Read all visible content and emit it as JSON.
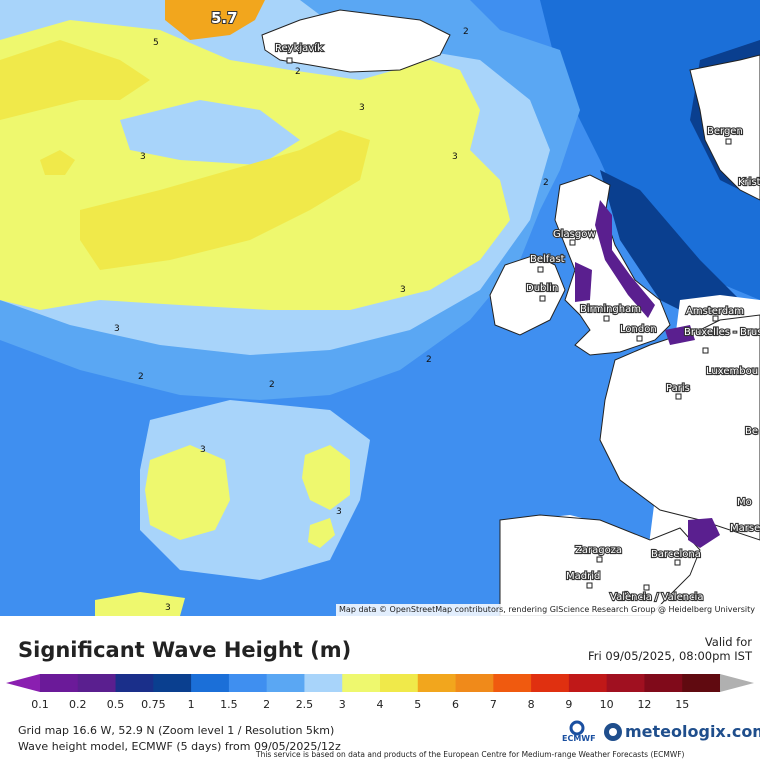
{
  "map": {
    "max_label": "5.7",
    "contour_labels": [
      "5",
      "2",
      "2",
      "3",
      "3",
      "3",
      "3",
      "3",
      "2",
      "2",
      "2",
      "2",
      "3",
      "3",
      "3"
    ],
    "cities": [
      {
        "name": "Reykjavík"
      },
      {
        "name": "Bergen"
      },
      {
        "name": "Krist"
      },
      {
        "name": "Glasgow"
      },
      {
        "name": "Belfast"
      },
      {
        "name": "Dublin"
      },
      {
        "name": "Birmingham"
      },
      {
        "name": "London"
      },
      {
        "name": "Amsterdam"
      },
      {
        "name": "Bruxelles - Brussel"
      },
      {
        "name": "Luxembou"
      },
      {
        "name": "Paris"
      },
      {
        "name": "Zaragoza"
      },
      {
        "name": "Barcelona"
      },
      {
        "name": "Madrid"
      },
      {
        "name": "València / Valencia"
      },
      {
        "name": "Marse"
      },
      {
        "name": "Mo"
      },
      {
        "name": "Be"
      }
    ],
    "attribution": "Map data © OpenStreetMap contributors, rendering GIScience Research Group @ Heidelberg University",
    "colors": {
      "water_deep": "#1e64c8",
      "band_1": "#1b6fd8",
      "band_1_5": "#3f8ff0",
      "band_2": "#5aa7f3",
      "band_2_5": "#a8d4fa",
      "band_3": "#eef86e",
      "band_4": "#f0e94a",
      "band_5": "#f2a61d",
      "land": "#ffffff",
      "band_0_75": "#0a3f8f",
      "band_0_5": "#5a1f8f"
    }
  },
  "legend": {
    "title": "Significant Wave Height (m)",
    "valid_label": "Valid for",
    "valid_time": "Fri 09/05/2025, 08:00pm IST",
    "ticks": [
      "0.1",
      "0.2",
      "0.5",
      "0.75",
      "1",
      "1.5",
      "2",
      "2.5",
      "3",
      "4",
      "5",
      "6",
      "7",
      "8",
      "9",
      "10",
      "12",
      "15"
    ],
    "colors": [
      "#6b1a99",
      "#5a1f8f",
      "#1a2f8a",
      "#0a3f8f",
      "#1b6fd8",
      "#3f8ff0",
      "#5aa7f3",
      "#a8d4fa",
      "#eef86e",
      "#f0e94a",
      "#f2a61d",
      "#f08a1a",
      "#f05a0f",
      "#e03010",
      "#c01818",
      "#a01020",
      "#800a1a",
      "#600a10"
    ],
    "grid_info": "Grid map 16.6 W, 52.9 N (Zoom level 1 / Resolution 5km)",
    "model_info": "Wave height model, ECMWF (5 days) from 09/05/2025/12z",
    "disclaimer": "This service is based on data and products of the European Centre for Medium-range Weather Forecasts (ECMWF)",
    "ecmwf_label": "ECMWF",
    "brand": "meteologix.com"
  }
}
